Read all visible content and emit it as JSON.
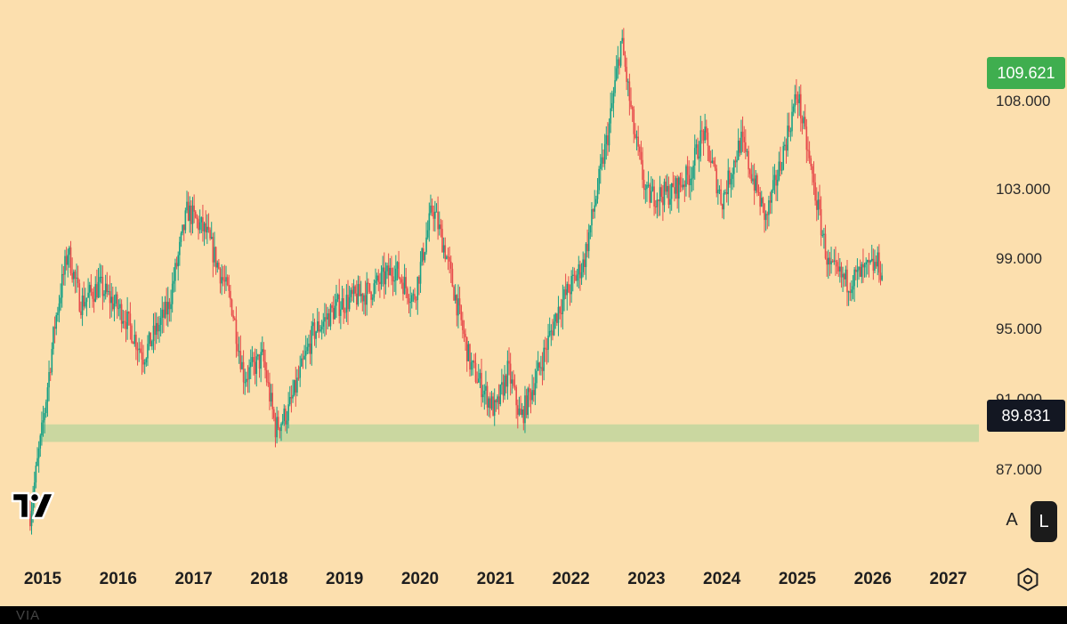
{
  "chart_data": {
    "type": "candlestick",
    "title": "",
    "x_tick_labels": [
      "2015",
      "2016",
      "2017",
      "2018",
      "2019",
      "2020",
      "2021",
      "2022",
      "2023",
      "2024",
      "2025",
      "2026",
      "2027"
    ],
    "y_tick_labels": [
      "87.000",
      "91.000",
      "95.000",
      "99.000",
      "103.000",
      "108.000"
    ],
    "ylim": [
      84.5,
      110.4
    ],
    "last_price": "109.621",
    "zone_price": "89.831",
    "support_zone": [
      88.6,
      89.6
    ],
    "up_color": "#16a085",
    "down_color": "#e74c4c",
    "zone_color": "#cad7a0",
    "close_path": [
      [
        "2014-11",
        84.5
      ],
      [
        "2015-01",
        89.5
      ],
      [
        "2015-03",
        95.5
      ],
      [
        "2015-05",
        99.5
      ],
      [
        "2015-07",
        96.5
      ],
      [
        "2015-10",
        97.5
      ],
      [
        "2016-02",
        95.8
      ],
      [
        "2016-05",
        93.5
      ],
      [
        "2016-09",
        96.3
      ],
      [
        "2016-12",
        101.8
      ],
      [
        "2017-03",
        100.5
      ],
      [
        "2017-07",
        96.5
      ],
      [
        "2017-09",
        92.3
      ],
      [
        "2017-12",
        93.4
      ],
      [
        "2018-02",
        89.4
      ],
      [
        "2018-04",
        90.3
      ],
      [
        "2018-08",
        94.8
      ],
      [
        "2018-12",
        96.4
      ],
      [
        "2019-05",
        97.2
      ],
      [
        "2019-09",
        98.5
      ],
      [
        "2019-12",
        96.7
      ],
      [
        "2020-03",
        102.0
      ],
      [
        "2020-05",
        99.5
      ],
      [
        "2020-09",
        93.0
      ],
      [
        "2021-01",
        90.3
      ],
      [
        "2021-03",
        92.7
      ],
      [
        "2021-05",
        89.9
      ],
      [
        "2021-08",
        92.8
      ],
      [
        "2021-11",
        96.2
      ],
      [
        "2022-03",
        98.8
      ],
      [
        "2022-07",
        106.4
      ],
      [
        "2022-09",
        111.5
      ],
      [
        "2022-11",
        106.3
      ],
      [
        "2023-01",
        102.6
      ],
      [
        "2023-05",
        102.8
      ],
      [
        "2023-08",
        103.9
      ],
      [
        "2023-10",
        106.3
      ],
      [
        "2024-01",
        102.3
      ],
      [
        "2024-04",
        105.8
      ],
      [
        "2024-08",
        101.3
      ],
      [
        "2024-10",
        104.0
      ],
      [
        "2025-01",
        108.5
      ],
      [
        "2025-03",
        104.4
      ],
      [
        "2025-06",
        98.5
      ],
      [
        "2025-09",
        97.7
      ],
      [
        "2026-02",
        98.8
      ],
      [
        "2026-02-20",
        97.6
      ]
    ]
  },
  "buttons": {
    "auto": "A",
    "log": "L"
  },
  "bottom_text": "VIA"
}
